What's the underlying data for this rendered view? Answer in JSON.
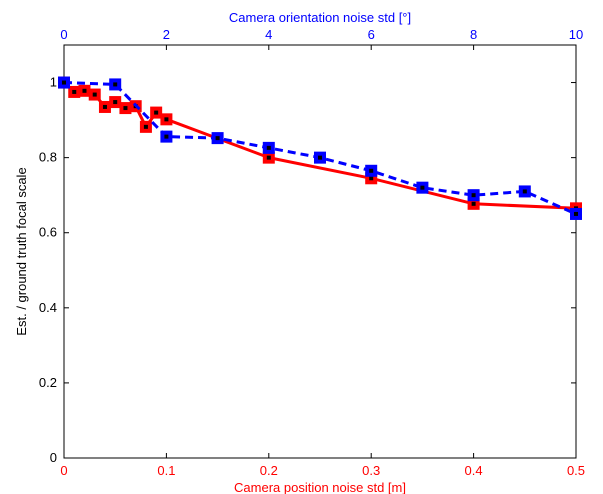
{
  "chart_data": {
    "type": "line",
    "ylabel": "Est. / ground truth focal scale",
    "ylim": [
      0,
      1.1
    ],
    "yticks": [
      0,
      0.2,
      0.4,
      0.6,
      0.8,
      1
    ],
    "ytick_labels": [
      "0",
      "0.2",
      "0.4",
      "0.6",
      "0.8",
      "1"
    ],
    "grid": false,
    "bottom_axis": {
      "label": "Camera position noise std [m]",
      "range": [
        0,
        0.5
      ],
      "ticks": [
        0,
        0.1,
        0.2,
        0.3,
        0.4,
        0.5
      ],
      "tick_labels": [
        "0",
        "0.1",
        "0.2",
        "0.3",
        "0.4",
        "0.5"
      ],
      "color": "#ff0000"
    },
    "top_axis": {
      "label": "Camera orientation noise std [°]",
      "range": [
        0,
        10
      ],
      "ticks": [
        0,
        2,
        4,
        6,
        8,
        10
      ],
      "tick_labels": [
        "0",
        "2",
        "4",
        "6",
        "8",
        "10"
      ],
      "color": "#0000ff"
    },
    "series": [
      {
        "axis": "bottom",
        "color": "#ff0000",
        "line_style": "solid",
        "x": [
          0,
          0.01,
          0.02,
          0.03,
          0.04,
          0.05,
          0.06,
          0.07,
          0.08,
          0.09,
          0.1,
          0.2,
          0.3,
          0.4,
          0.5
        ],
        "y": [
          1.0,
          0.975,
          0.978,
          0.968,
          0.935,
          0.948,
          0.932,
          0.937,
          0.882,
          0.92,
          0.902,
          0.8,
          0.745,
          0.677,
          0.665
        ]
      },
      {
        "axis": "top",
        "color": "#0000ff",
        "line_style": "dashed",
        "x": [
          0,
          1,
          2,
          3,
          4,
          5,
          6,
          7,
          8,
          9,
          10
        ],
        "y": [
          1.0,
          0.995,
          0.856,
          0.852,
          0.826,
          0.8,
          0.765,
          0.72,
          0.7,
          0.71,
          0.65
        ]
      }
    ]
  }
}
